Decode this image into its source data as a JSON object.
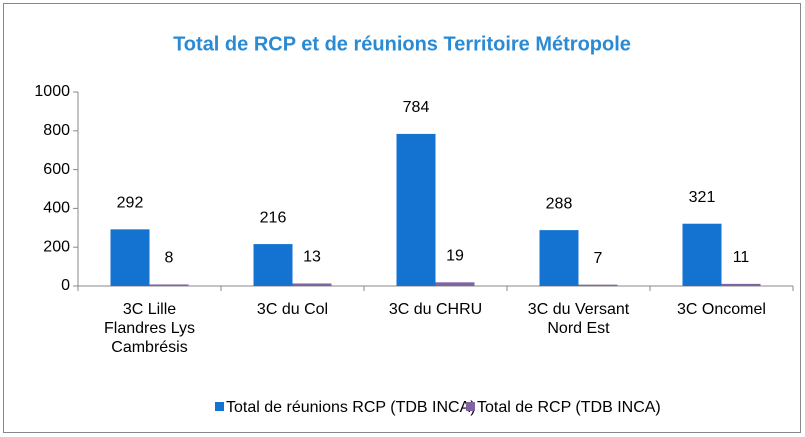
{
  "chart_data": {
    "type": "bar",
    "title": "Total de RCP et de réunions Territoire Métropole",
    "categories": [
      [
        "3C Lille",
        "Flandres Lys",
        "Cambrésis"
      ],
      [
        "3C du Col"
      ],
      [
        "3C du CHRU"
      ],
      [
        "3C du Versant",
        "Nord Est"
      ],
      [
        "3C Oncomel"
      ]
    ],
    "series": [
      {
        "name": "Total de réunions RCP (TDB INCA)",
        "color": "#1472d0",
        "values": [
          292,
          216,
          784,
          288,
          321
        ]
      },
      {
        "name": "Total de RCP (TDB INCA)",
        "color": "#8064a2",
        "values": [
          8,
          13,
          19,
          7,
          11
        ]
      }
    ],
    "ylim": [
      0,
      1000
    ],
    "yticks": [
      0,
      200,
      400,
      600,
      800,
      1000
    ],
    "grid": false,
    "legend": "bottom"
  }
}
